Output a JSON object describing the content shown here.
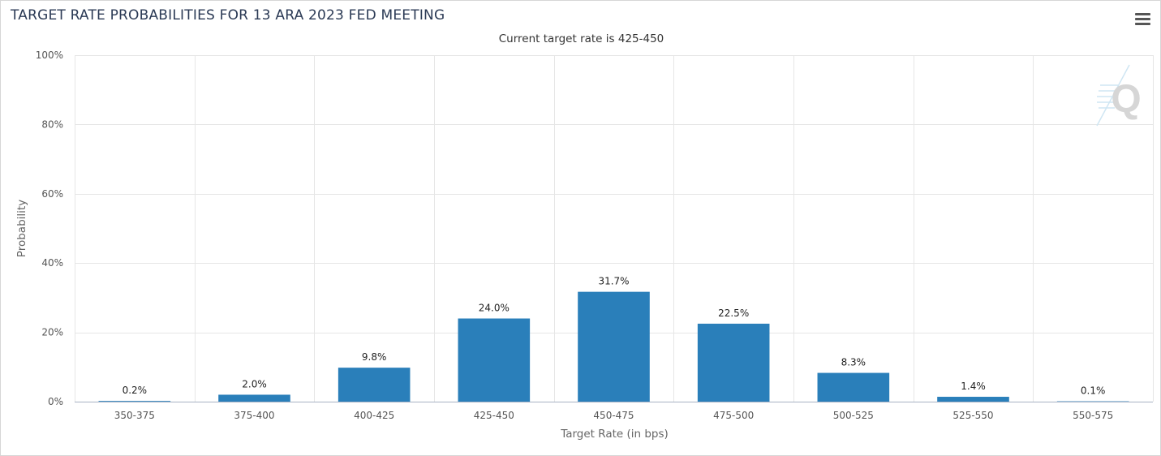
{
  "chart_data": {
    "type": "bar",
    "title": "TARGET RATE PROBABILITIES FOR 13 ARA 2023 FED MEETING",
    "subtitle": "Current target rate is 425-450",
    "xlabel": "Target Rate (in bps)",
    "ylabel": "Probability",
    "categories": [
      "350-375",
      "375-400",
      "400-425",
      "425-450",
      "450-475",
      "475-500",
      "500-525",
      "525-550",
      "550-575"
    ],
    "values": [
      0.2,
      2.0,
      9.8,
      24.0,
      31.7,
      22.5,
      8.3,
      1.4,
      0.1
    ],
    "data_labels": [
      "0.2%",
      "2.0%",
      "9.8%",
      "24.0%",
      "31.7%",
      "22.5%",
      "8.3%",
      "1.4%",
      "0.1%"
    ],
    "ylim": [
      0,
      100
    ],
    "yticks": [
      "0%",
      "20%",
      "40%",
      "60%",
      "80%",
      "100%"
    ],
    "ytick_values": [
      0,
      20,
      40,
      60,
      80,
      100
    ],
    "grid": true,
    "legend": "none",
    "bar_color": "#2a7fba",
    "grid_color": "#e6e6e6"
  },
  "toolbar": {
    "menu_icon": "hamburger-menu-icon"
  },
  "watermark": {
    "text": "Q",
    "icon": "quikstrike-logo"
  }
}
